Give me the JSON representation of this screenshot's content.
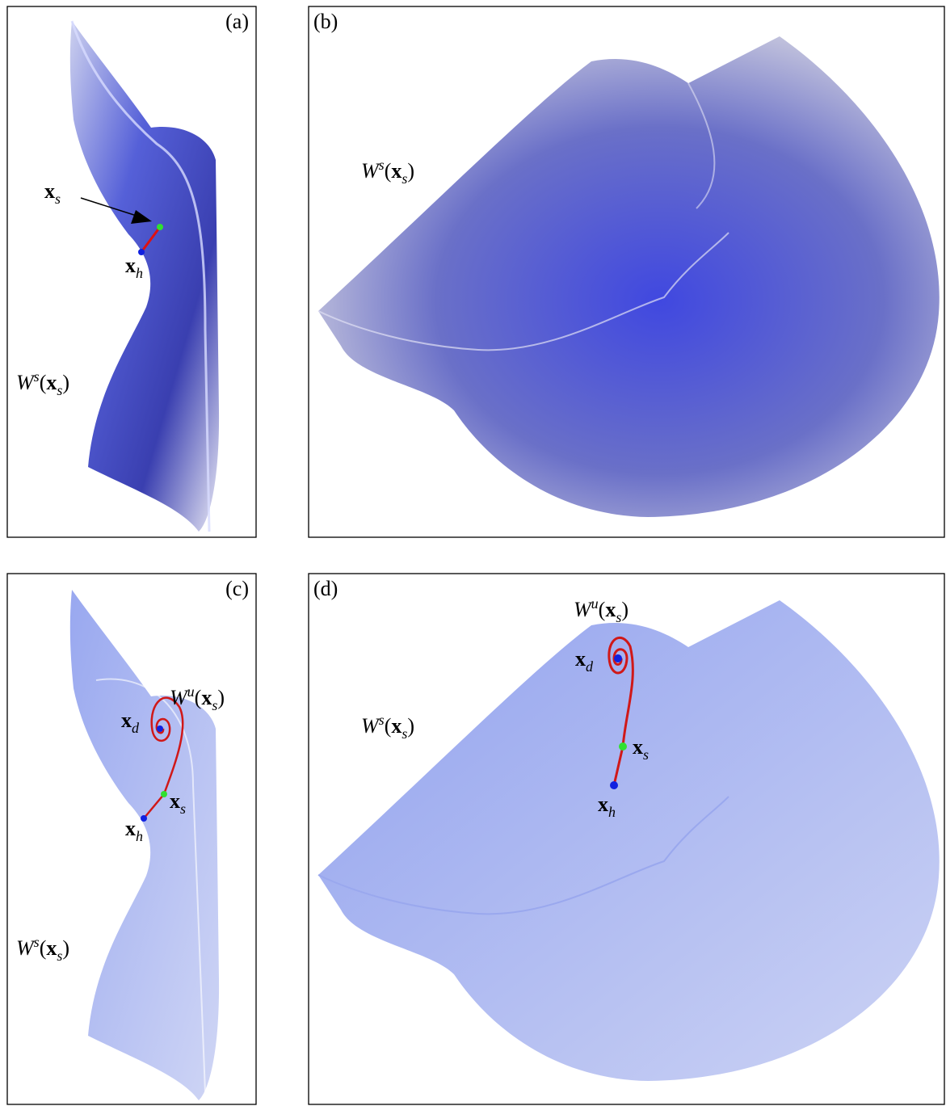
{
  "panels": [
    {
      "tag": "(a)",
      "labels": [
        {
          "parts": [
            {
              "text": "x",
              "style": "bold"
            },
            {
              "text": "s",
              "style": "sub"
            }
          ]
        },
        {
          "parts": [
            {
              "text": "x",
              "style": "bold"
            },
            {
              "text": "h",
              "style": "sub"
            }
          ]
        },
        {
          "parts": [
            {
              "text": "W",
              "style": "italic"
            },
            {
              "text": "s",
              "style": "sup"
            },
            {
              "text": "(",
              "style": "plain"
            },
            {
              "text": "x",
              "style": "bold"
            },
            {
              "text": "s",
              "style": "sub"
            },
            {
              "text": ")",
              "style": "plain"
            }
          ]
        }
      ]
    },
    {
      "tag": "(b)",
      "labels": [
        {
          "parts": [
            {
              "text": "W",
              "style": "italic"
            },
            {
              "text": "s",
              "style": "sup"
            },
            {
              "text": "(",
              "style": "plain"
            },
            {
              "text": "x",
              "style": "bold"
            },
            {
              "text": "s",
              "style": "sub"
            },
            {
              "text": ")",
              "style": "plain"
            }
          ]
        }
      ]
    },
    {
      "tag": "(c)",
      "labels": [
        {
          "parts": [
            {
              "text": "W",
              "style": "italic"
            },
            {
              "text": "u",
              "style": "sup"
            },
            {
              "text": "(",
              "style": "plain"
            },
            {
              "text": "x",
              "style": "bold"
            },
            {
              "text": "s",
              "style": "sub"
            },
            {
              "text": ")",
              "style": "plain"
            }
          ]
        },
        {
          "parts": [
            {
              "text": "x",
              "style": "bold"
            },
            {
              "text": "d",
              "style": "sub"
            }
          ]
        },
        {
          "parts": [
            {
              "text": "x",
              "style": "bold"
            },
            {
              "text": "s",
              "style": "sub"
            }
          ]
        },
        {
          "parts": [
            {
              "text": "x",
              "style": "bold"
            },
            {
              "text": "h",
              "style": "sub"
            }
          ]
        },
        {
          "parts": [
            {
              "text": "W",
              "style": "italic"
            },
            {
              "text": "s",
              "style": "sup"
            },
            {
              "text": "(",
              "style": "plain"
            },
            {
              "text": "x",
              "style": "bold"
            },
            {
              "text": "s",
              "style": "sub"
            },
            {
              "text": ")",
              "style": "plain"
            }
          ]
        }
      ]
    },
    {
      "tag": "(d)",
      "labels": [
        {
          "parts": [
            {
              "text": "W",
              "style": "italic"
            },
            {
              "text": "u",
              "style": "sup"
            },
            {
              "text": "(",
              "style": "plain"
            },
            {
              "text": "x",
              "style": "bold"
            },
            {
              "text": "s",
              "style": "sub"
            },
            {
              "text": ")",
              "style": "plain"
            }
          ]
        },
        {
          "parts": [
            {
              "text": "x",
              "style": "bold"
            },
            {
              "text": "d",
              "style": "sub"
            }
          ]
        },
        {
          "parts": [
            {
              "text": "W",
              "style": "italic"
            },
            {
              "text": "s",
              "style": "sup"
            },
            {
              "text": "(",
              "style": "plain"
            },
            {
              "text": "x",
              "style": "bold"
            },
            {
              "text": "s",
              "style": "sub"
            },
            {
              "text": ")",
              "style": "plain"
            }
          ]
        },
        {
          "parts": [
            {
              "text": "x",
              "style": "bold"
            },
            {
              "text": "s",
              "style": "sub"
            }
          ]
        },
        {
          "parts": [
            {
              "text": "x",
              "style": "bold"
            },
            {
              "text": "h",
              "style": "sub"
            }
          ]
        }
      ]
    }
  ]
}
